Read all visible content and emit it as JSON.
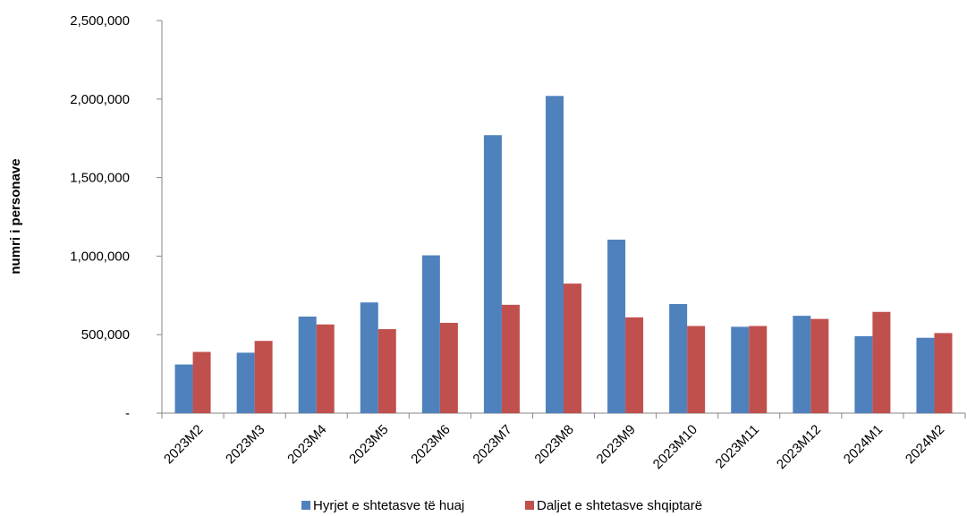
{
  "chart_data": {
    "type": "bar",
    "title": "",
    "xlabel": "",
    "ylabel": "numri i personave",
    "ylim": [
      0,
      2500000
    ],
    "yticks": [
      0,
      500000,
      1000000,
      1500000,
      2000000,
      2500000
    ],
    "ytick_labels": [
      "-",
      "500,000",
      "1,000,000",
      "1,500,000",
      "2,000,000",
      "2,500,000"
    ],
    "grid": false,
    "legend_position": "bottom",
    "categories": [
      "2023M2",
      "2023M3",
      "2023M4",
      "2023M5",
      "2023M6",
      "2023M7",
      "2023M8",
      "2023M9",
      "2023M10",
      "2023M11",
      "2023M12",
      "2024M1",
      "2024M2"
    ],
    "series": [
      {
        "name": "Hyrjet e shtetasve të huaj",
        "color": "#4f81bd",
        "values": [
          310000,
          385000,
          615000,
          705000,
          1005000,
          1770000,
          2020000,
          1105000,
          695000,
          550000,
          620000,
          490000,
          480000
        ]
      },
      {
        "name": "Daljet e shtetasve shqiptarë",
        "color": "#c0504d",
        "values": [
          390000,
          460000,
          565000,
          535000,
          575000,
          690000,
          825000,
          610000,
          555000,
          555000,
          600000,
          645000,
          510000
        ]
      }
    ]
  }
}
